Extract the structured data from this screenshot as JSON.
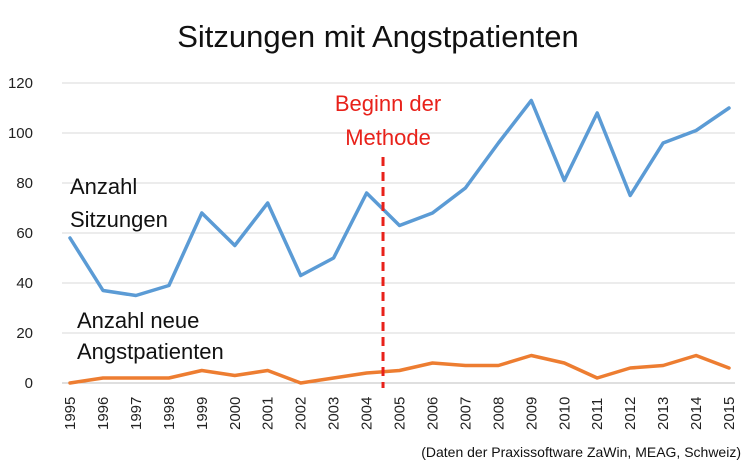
{
  "chart_data": {
    "type": "line",
    "title": "Sitzungen mit Angstpatienten",
    "categories": [
      "1995",
      "1996",
      "1997",
      "1998",
      "1999",
      "2000",
      "2001",
      "2002",
      "2003",
      "2004",
      "2005",
      "2006",
      "2007",
      "2008",
      "2009",
      "2010",
      "2011",
      "2012",
      "2013",
      "2014",
      "2015"
    ],
    "series": [
      {
        "name": "Anzahl Sitzungen",
        "color": "#5b9bd5",
        "values": [
          58,
          37,
          35,
          39,
          68,
          55,
          72,
          43,
          50,
          76,
          63,
          68,
          78,
          96,
          113,
          81,
          108,
          75,
          96,
          101,
          110
        ]
      },
      {
        "name": "Anzahl neue Angstpatienten",
        "color": "#ed7d31",
        "values": [
          0,
          2,
          2,
          2,
          5,
          3,
          5,
          0,
          2,
          4,
          5,
          8,
          7,
          7,
          11,
          8,
          2,
          6,
          7,
          11,
          6
        ]
      }
    ],
    "series_labels": [
      [
        "Anzahl",
        "Sitzungen"
      ],
      [
        "Anzahl neue",
        "Angstpatienten"
      ]
    ],
    "ylim": [
      0,
      120
    ],
    "yticks": [
      0,
      20,
      40,
      60,
      80,
      100,
      120
    ],
    "grid": true,
    "marker": {
      "label": [
        "Beginn der",
        "Methode"
      ],
      "between": [
        "2004",
        "2005"
      ],
      "color": "#e8211a"
    },
    "source": "(Daten der Praxissoftware ZaWin, MEAG, Schweiz)",
    "gridcolor": "#d9d9d9"
  }
}
